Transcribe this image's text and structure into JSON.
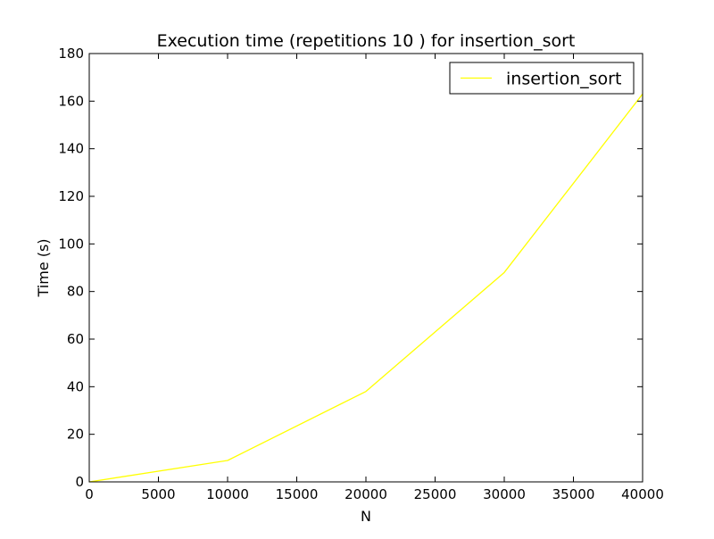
{
  "chart_data": {
    "type": "line",
    "title": "Execution time (repetitions 10 ) for insertion_sort",
    "xlabel": "N",
    "ylabel": "Time (s)",
    "xlim": [
      0,
      40000
    ],
    "ylim": [
      0,
      180
    ],
    "xticks": [
      0,
      5000,
      10000,
      15000,
      20000,
      25000,
      30000,
      35000,
      40000
    ],
    "yticks": [
      0,
      20,
      40,
      60,
      80,
      100,
      120,
      140,
      160,
      180
    ],
    "grid": false,
    "legend_position": "top-right",
    "series": [
      {
        "name": "insertion_sort",
        "color": "#ffff00",
        "x": [
          0,
          10000,
          20000,
          30000,
          40000
        ],
        "y": [
          0,
          9,
          38,
          88,
          163
        ]
      }
    ]
  }
}
